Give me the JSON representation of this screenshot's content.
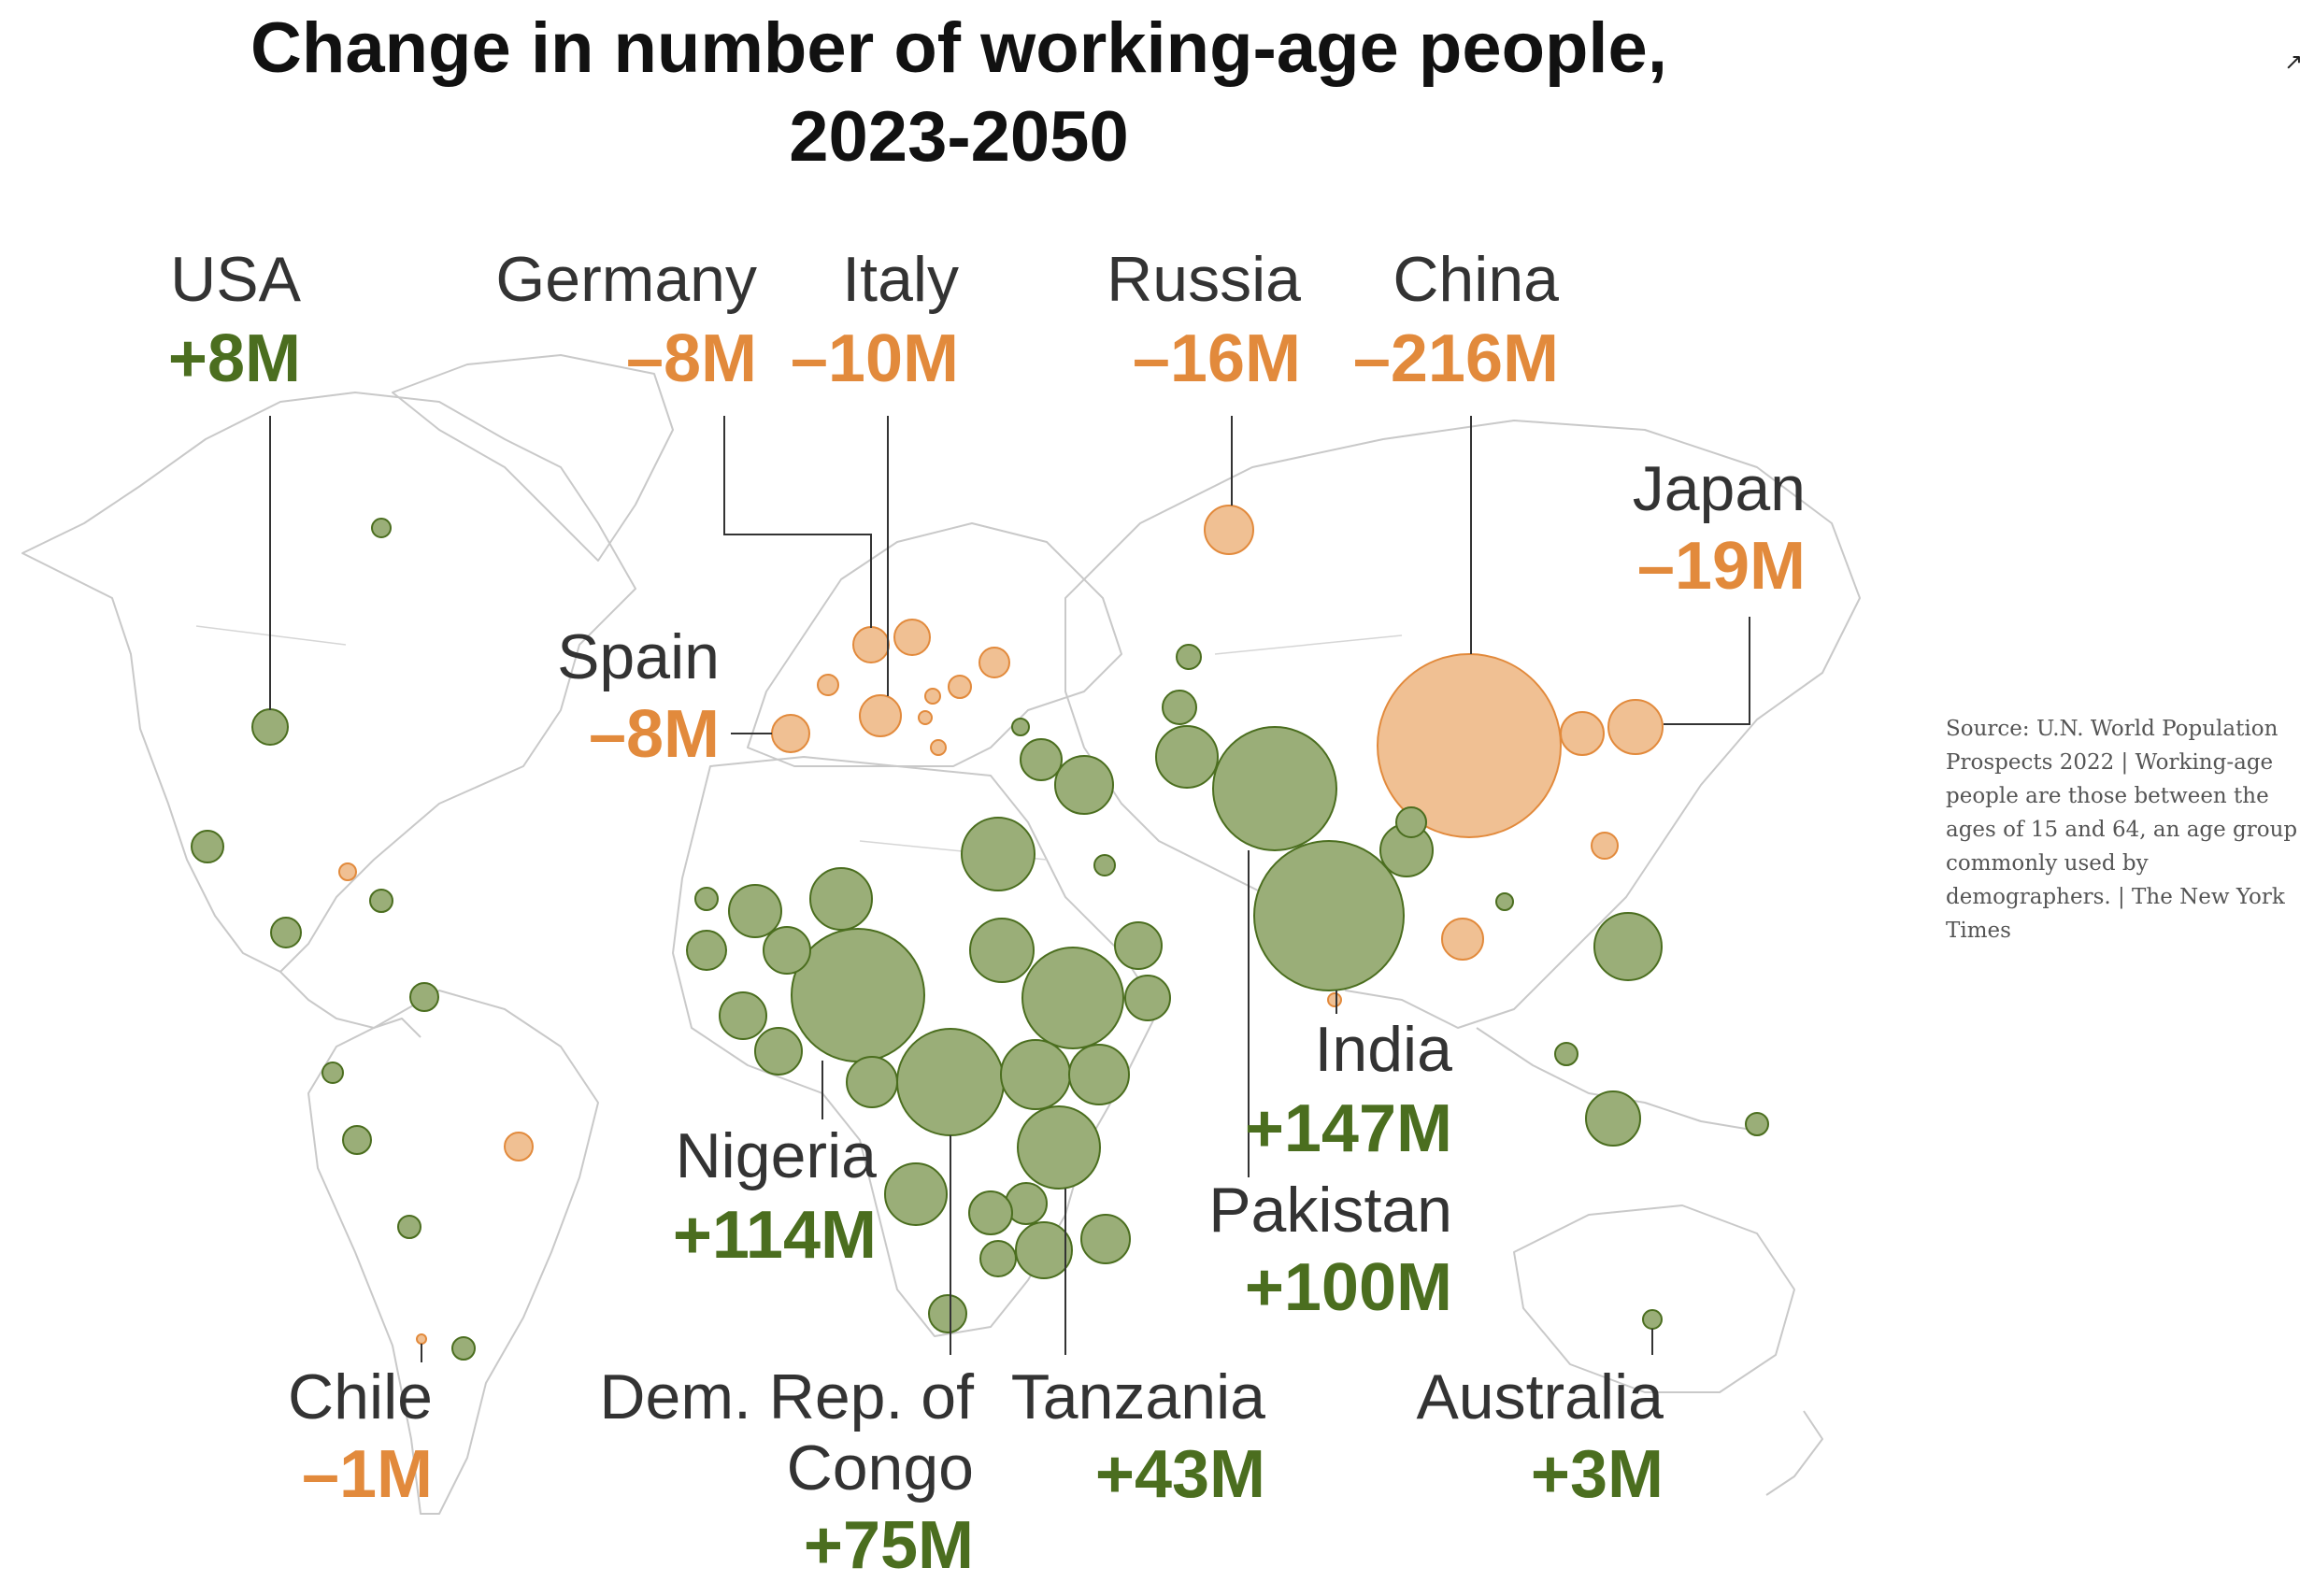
{
  "title": {
    "line1": "Change in number of working-age people,",
    "line2": "2023-2050"
  },
  "source_note": "Source: U.N. World Population Prospects 2022 | Working-age people are those between the ages of 15 and 64, an age group commonly used by demographers. | The New York Times",
  "colors": {
    "increase": "#4b6e1f",
    "increase_fill": "#9aae78",
    "decrease": "#e28a3c",
    "decrease_fill": "#f0c093",
    "basemap": "#cccccc"
  },
  "legend_meaning": {
    "green": "increase",
    "orange": "decrease"
  },
  "labels": [
    {
      "name": "USA",
      "value": "+8M",
      "change": 8
    },
    {
      "name": "Germany",
      "value": "–8M",
      "change": -8
    },
    {
      "name": "Italy",
      "value": "–10M",
      "change": -10
    },
    {
      "name": "Russia",
      "value": "–16M",
      "change": -16
    },
    {
      "name": "China",
      "value": "–216M",
      "change": -216
    },
    {
      "name": "Japan",
      "value": "–19M",
      "change": -19
    },
    {
      "name": "Spain",
      "value": "–8M",
      "change": -8
    },
    {
      "name": "India",
      "value": "+147M",
      "change": 147
    },
    {
      "name": "Pakistan",
      "value": "+100M",
      "change": 100
    },
    {
      "name": "Nigeria",
      "value": "+114M",
      "change": 114
    },
    {
      "name": "Chile",
      "value": "–1M",
      "change": -1
    },
    {
      "name": "Dem. Rep. of Congo",
      "value": "+75M",
      "change": 75
    },
    {
      "name": "Tanzania",
      "value": "+43M",
      "change": 43
    },
    {
      "name": "Australia",
      "value": "+3M",
      "change": 3
    }
  ],
  "icons": {
    "expand": "expand-icon"
  }
}
